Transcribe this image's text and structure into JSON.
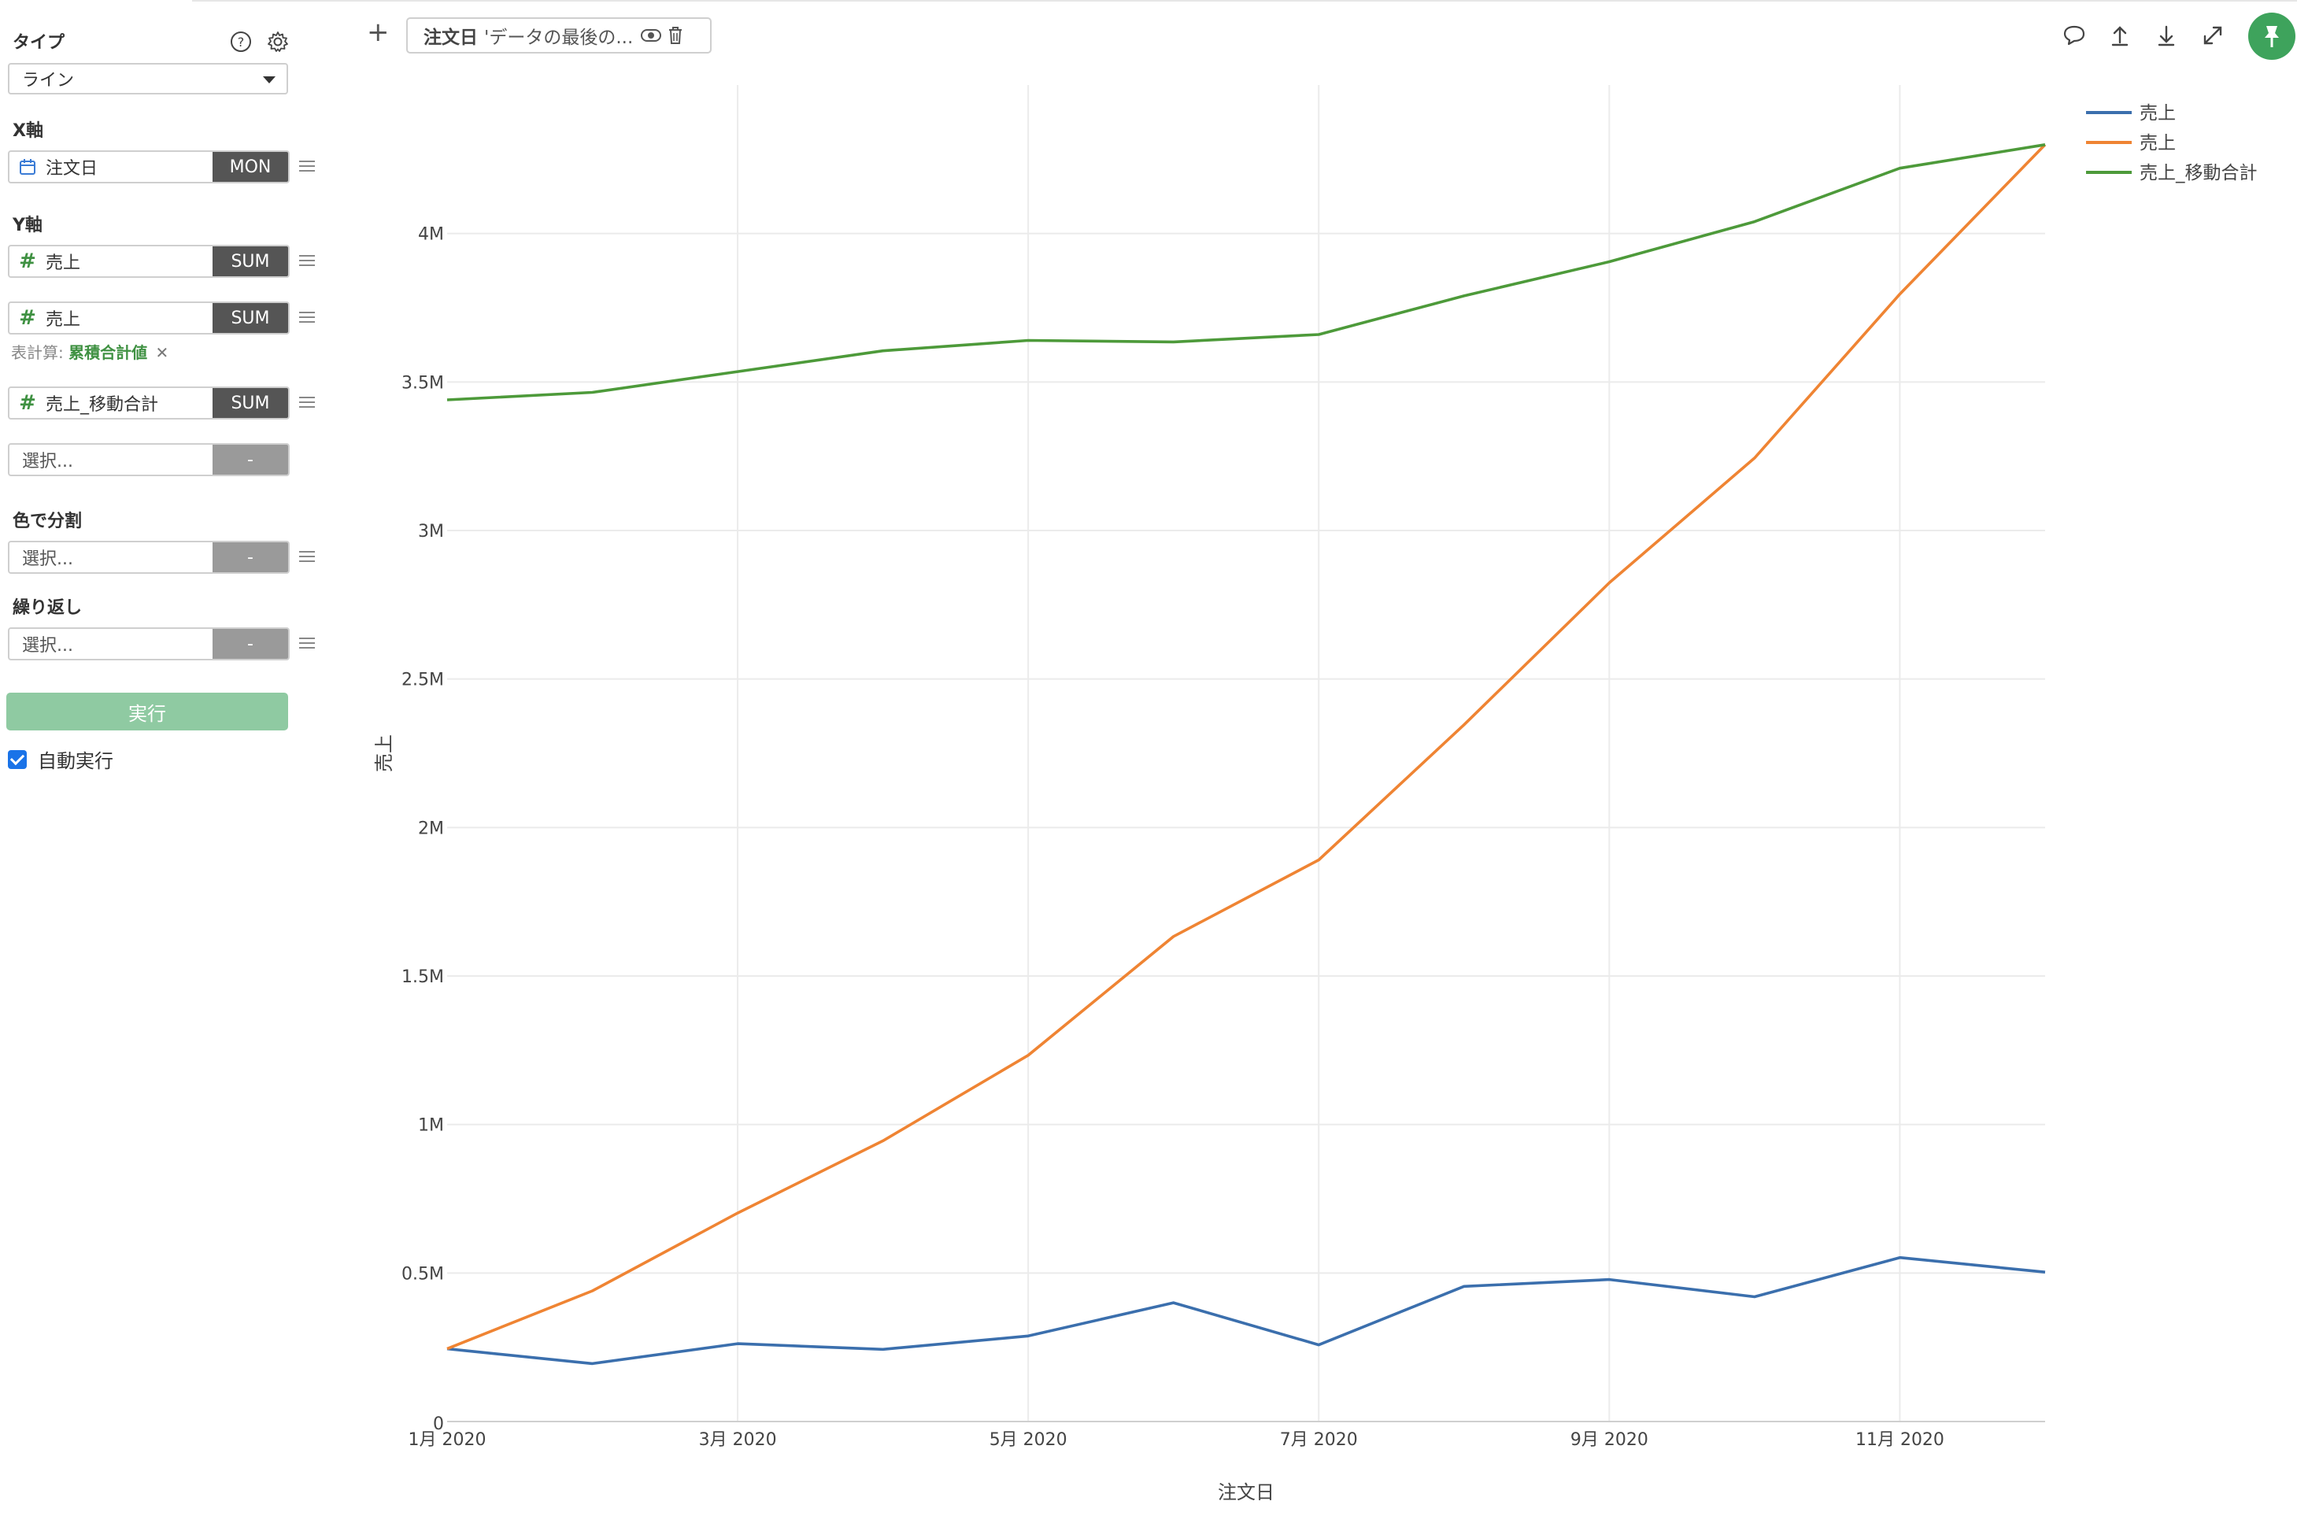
{
  "sidebar": {
    "type_label": "タイプ",
    "type_value": "ライン",
    "x_axis_label": "X軸",
    "x_field": {
      "name": "注文日",
      "agg": "MON"
    },
    "y_axis_label": "Y軸",
    "y_fields": [
      {
        "name": "売上",
        "agg": "SUM"
      },
      {
        "name": "売上",
        "agg": "SUM"
      },
      {
        "name": "売上_移動合計",
        "agg": "SUM"
      }
    ],
    "table_calc_prefix": "表計算:",
    "table_calc_value": "累積合計値",
    "table_calc_remove": "✕",
    "y_empty": {
      "placeholder": "選択...",
      "agg": "-"
    },
    "color_split_label": "色で分割",
    "color_split": {
      "placeholder": "選択...",
      "agg": "-"
    },
    "repeat_label": "繰り返し",
    "repeat": {
      "placeholder": "選択...",
      "agg": "-"
    },
    "run_label": "実行",
    "auto_run_label": "自動実行"
  },
  "topbar": {
    "add_symbol": "+",
    "filter_name": "注文日",
    "filter_desc": "'データの最後の..."
  },
  "chart_data": {
    "type": "line",
    "xlabel": "注文日",
    "ylabel": "売上",
    "x": [
      "1月 2020",
      "2月 2020",
      "3月 2020",
      "4月 2020",
      "5月 2020",
      "6月 2020",
      "7月 2020",
      "8月 2020",
      "9月 2020",
      "10月 2020",
      "11月 2020",
      "12月 2020"
    ],
    "x_tick_labels": [
      "1月 2020",
      "3月 2020",
      "5月 2020",
      "7月 2020",
      "9月 2020",
      "11月 2020"
    ],
    "y_tick_labels": [
      "0",
      "0.5M",
      "1M",
      "1.5M",
      "2M",
      "2.5M",
      "3M",
      "3.5M",
      "4M"
    ],
    "ylim": [
      0,
      4500000
    ],
    "grid": true,
    "legend_position": "top-right",
    "series": [
      {
        "name": "売上",
        "color": "#3b6fad",
        "values": [
          245000,
          195000,
          262000,
          243000,
          288000,
          400000,
          258000,
          455000,
          478000,
          420000,
          552000,
          503000
        ]
      },
      {
        "name": "売上",
        "color": "#ef8433",
        "values": [
          245000,
          440000,
          702000,
          945000,
          1233000,
          1633000,
          1891000,
          2346000,
          2824000,
          3244000,
          3796000,
          4299000
        ]
      },
      {
        "name": "売上_移動合計",
        "color": "#4d9a3a",
        "values": [
          3440000,
          3465000,
          3535000,
          3605000,
          3640000,
          3635000,
          3660000,
          3790000,
          3905000,
          4040000,
          4220000,
          4299000
        ]
      }
    ]
  }
}
